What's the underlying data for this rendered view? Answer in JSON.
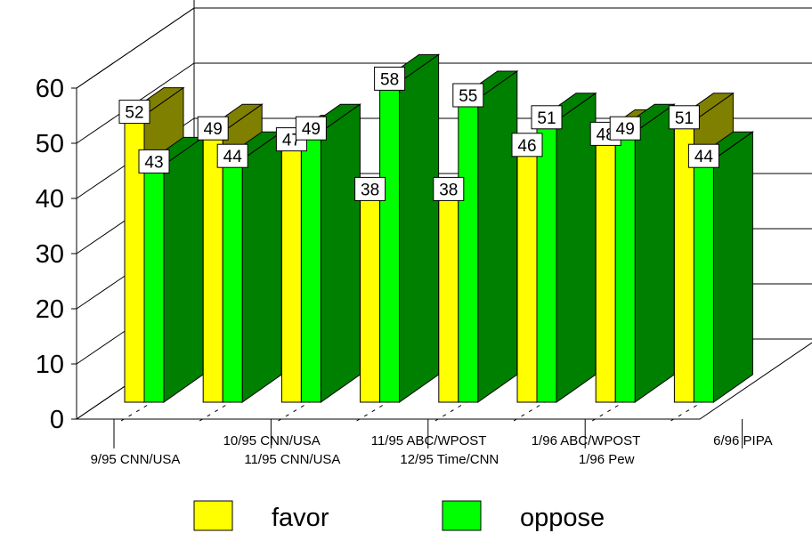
{
  "chart_data": {
    "type": "bar",
    "categories": [
      "9/95 CNN/USA",
      "10/95 CNN/USA",
      "11/95 CNN/USA",
      "11/95 ABC/WPOST",
      "12/95 Time/CNN",
      "1/96 ABC/WPOST",
      "1/96 Pew",
      "6/96 PIPA"
    ],
    "series": [
      {
        "name": "favor",
        "values": [
          52,
          49,
          47,
          38,
          38,
          46,
          48,
          51
        ]
      },
      {
        "name": "oppose",
        "values": [
          43,
          44,
          49,
          58,
          55,
          51,
          49,
          44
        ]
      }
    ],
    "data_labels": {
      "favor": [
        "52",
        "49",
        "47",
        "38",
        "38",
        "46",
        "48",
        "51"
      ],
      "oppose": [
        "43",
        "44",
        "49",
        "58",
        "55",
        "51",
        "49",
        "44"
      ]
    },
    "y_ticks": [
      "0",
      "10",
      "20",
      "30",
      "40",
      "50",
      "60"
    ],
    "ylim": [
      0,
      60
    ],
    "grid": true,
    "projection": "3d",
    "legend_position": "bottom",
    "colors": {
      "favor_front": "#ffff00",
      "favor_side": "#808000",
      "oppose_front": "#00ff00",
      "oppose_side": "#008000",
      "back_wall": "#ffffff",
      "lines": "#000000"
    }
  }
}
